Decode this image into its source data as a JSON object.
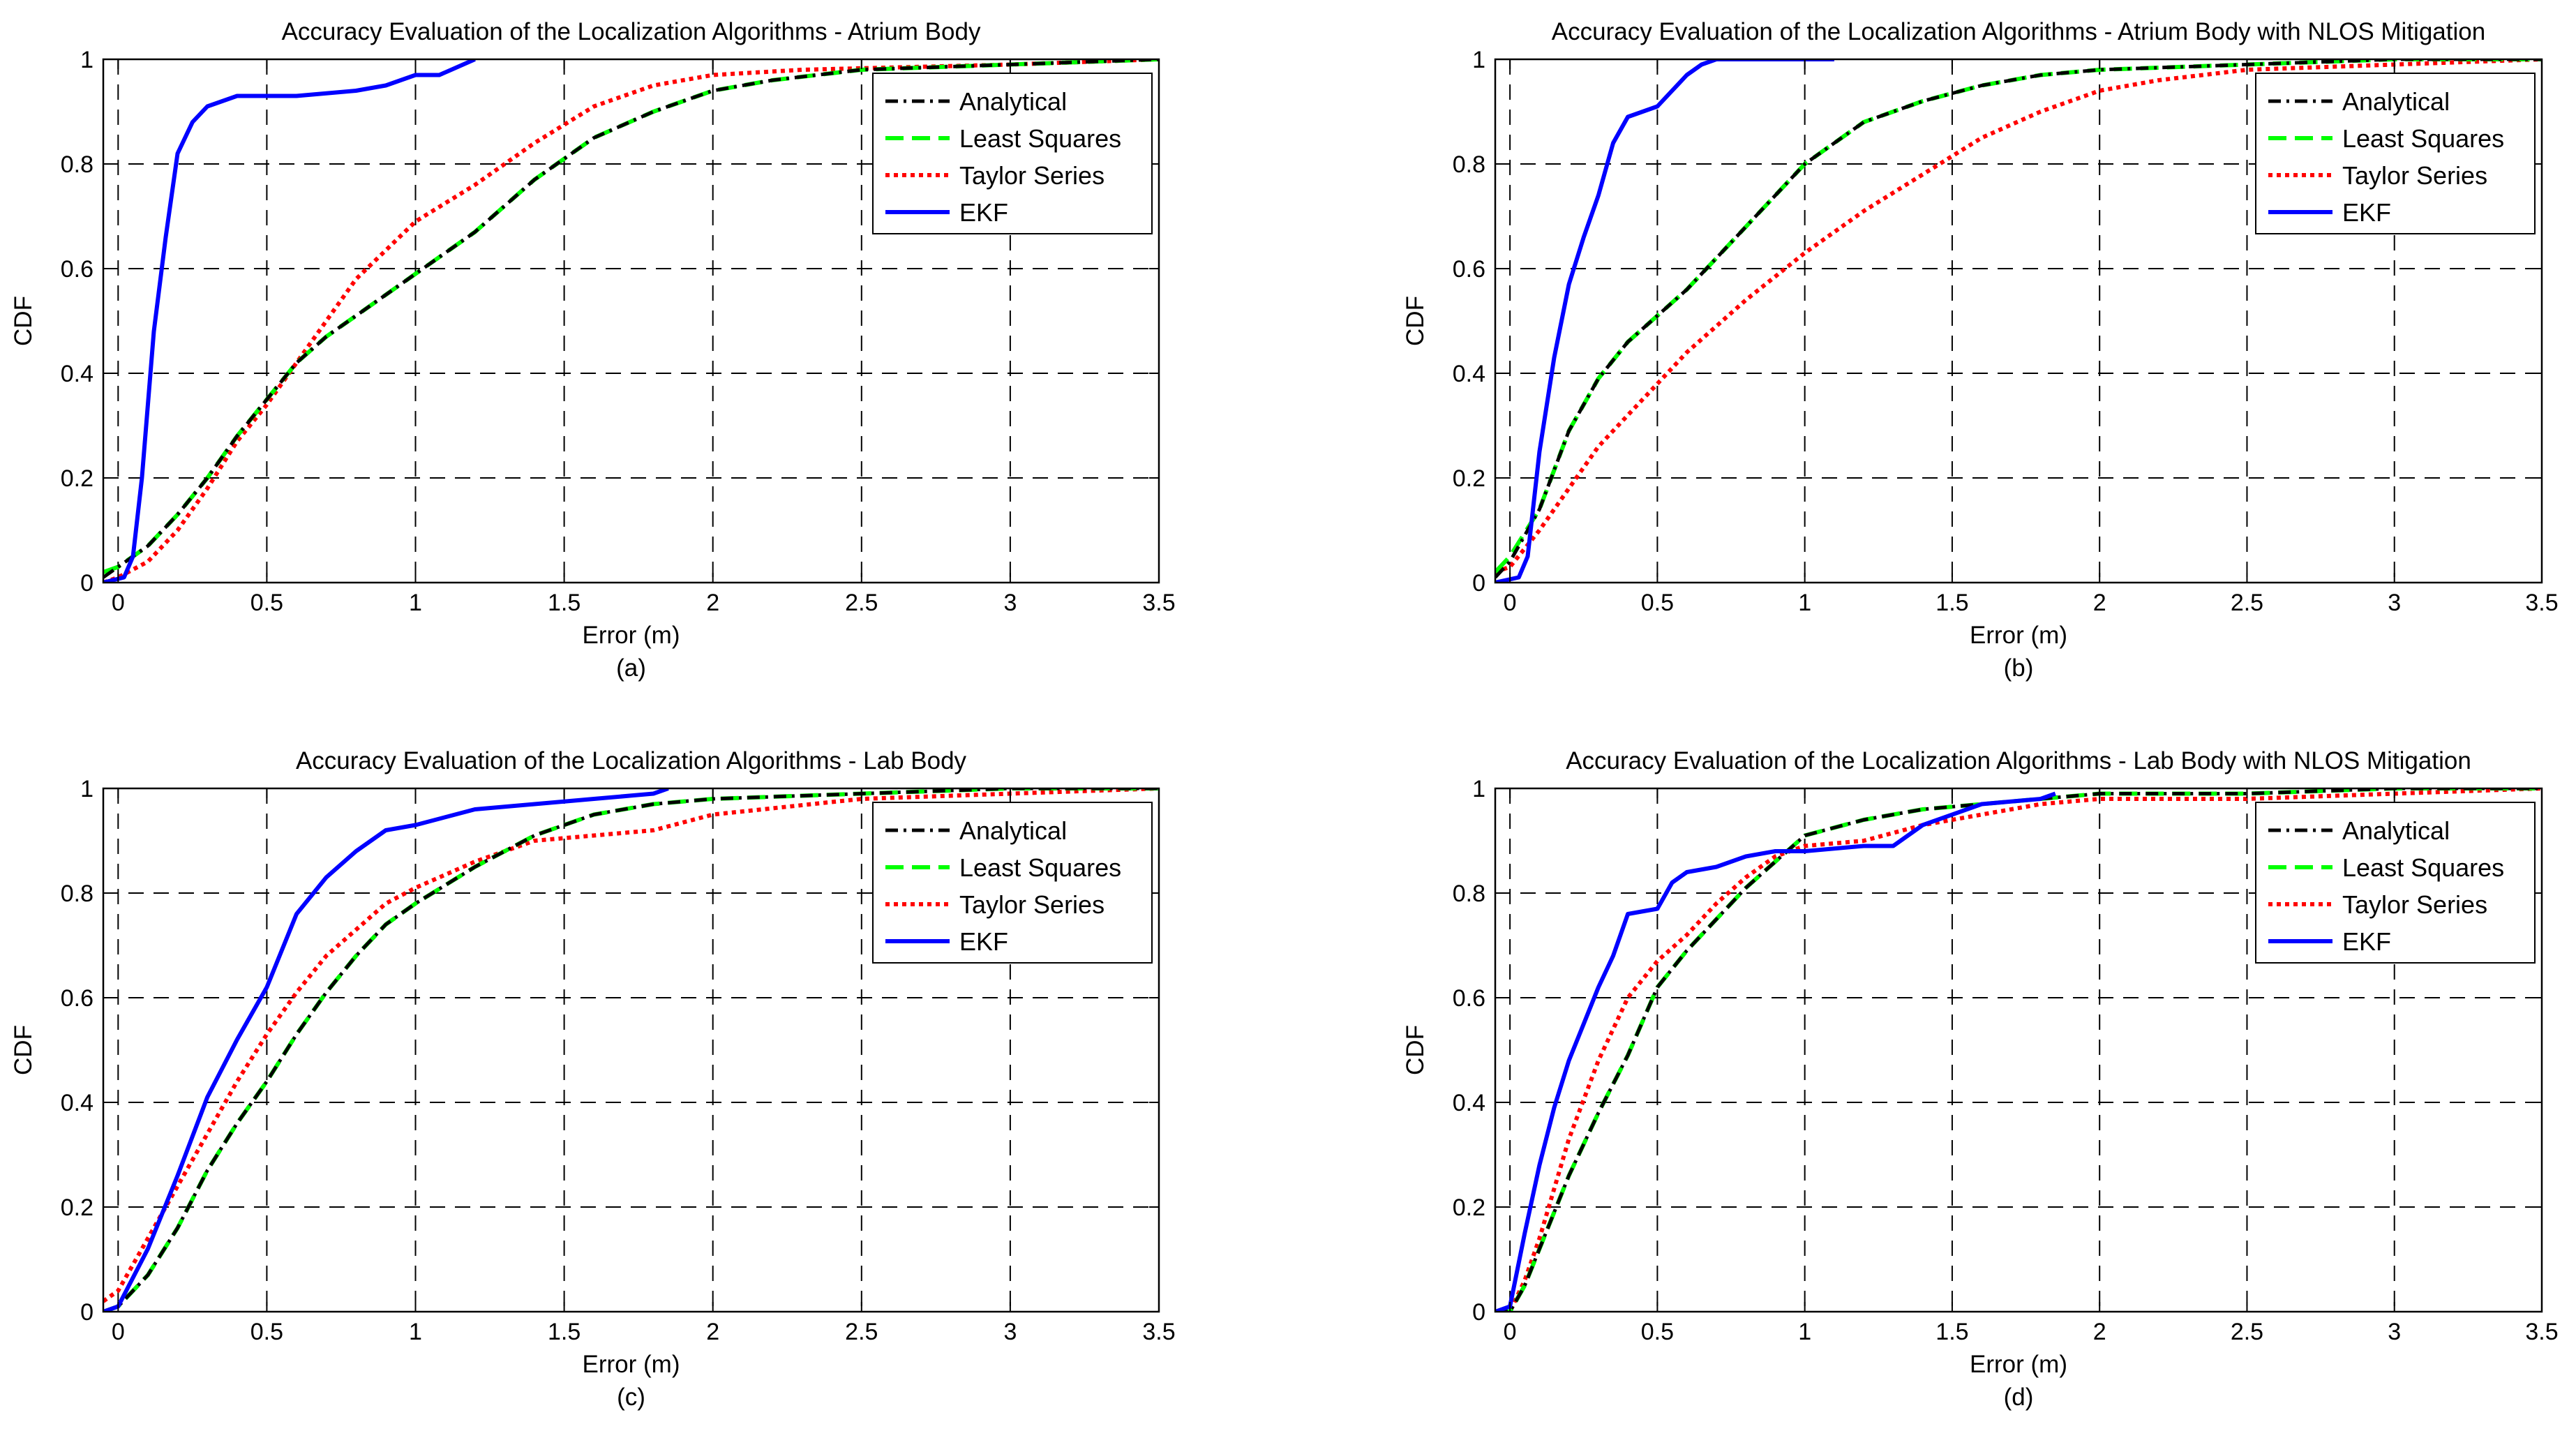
{
  "figure": {
    "legend_labels": [
      "Analytical",
      "Least Squares",
      "Taylor Series",
      "EKF"
    ],
    "series_colors": {
      "Analytical": "#000000",
      "Least Squares": "#00ff00",
      "Taylor Series": "#ff0000",
      "EKF": "#0000ff"
    }
  },
  "chart_data": [
    {
      "type": "line",
      "title": "Accuracy Evaluation of the Localization Algorithms - Atrium Body",
      "xlabel": "Error (m)",
      "ylabel": "CDF",
      "caption": "(a)",
      "xlim": [
        -0.05,
        3.5
      ],
      "ylim": [
        0,
        1
      ],
      "xticks": [
        0,
        0.5,
        1,
        1.5,
        2,
        2.5,
        3,
        3.5
      ],
      "xtick_labels": [
        "0",
        "0.5",
        "1",
        "1.5",
        "2",
        "2.5",
        "3",
        "3.5"
      ],
      "yticks": [
        0,
        0.2,
        0.4,
        0.6,
        0.8,
        1
      ],
      "ytick_labels": [
        "0",
        "0.2",
        "0.4",
        "0.6",
        "0.8",
        "1"
      ],
      "grid": true,
      "legend": "top-right",
      "series": [
        {
          "name": "Analytical",
          "x": [
            -0.05,
            0,
            0.1,
            0.2,
            0.3,
            0.4,
            0.5,
            0.6,
            0.7,
            0.8,
            1.0,
            1.2,
            1.4,
            1.6,
            1.8,
            2.0,
            2.2,
            2.5,
            3.0,
            3.5
          ],
          "y": [
            0.01,
            0.03,
            0.07,
            0.13,
            0.2,
            0.28,
            0.35,
            0.42,
            0.47,
            0.51,
            0.59,
            0.67,
            0.77,
            0.85,
            0.9,
            0.94,
            0.96,
            0.98,
            0.99,
            1.0
          ]
        },
        {
          "name": "Least Squares",
          "x": [
            -0.05,
            0,
            0.1,
            0.2,
            0.3,
            0.4,
            0.5,
            0.6,
            0.7,
            0.8,
            1.0,
            1.2,
            1.4,
            1.6,
            1.8,
            2.0,
            2.2,
            2.5,
            3.0,
            3.5
          ],
          "y": [
            0.02,
            0.03,
            0.07,
            0.13,
            0.2,
            0.28,
            0.35,
            0.42,
            0.47,
            0.51,
            0.59,
            0.67,
            0.77,
            0.85,
            0.9,
            0.94,
            0.96,
            0.98,
            0.99,
            1.0
          ]
        },
        {
          "name": "Taylor Series",
          "x": [
            -0.05,
            0,
            0.1,
            0.2,
            0.3,
            0.4,
            0.5,
            0.6,
            0.8,
            1.0,
            1.2,
            1.4,
            1.6,
            1.8,
            2.0,
            2.3,
            3.0,
            3.5
          ],
          "y": [
            0.0,
            0.01,
            0.04,
            0.1,
            0.18,
            0.27,
            0.34,
            0.42,
            0.58,
            0.69,
            0.76,
            0.84,
            0.91,
            0.95,
            0.97,
            0.98,
            0.99,
            1.0
          ]
        },
        {
          "name": "EKF",
          "x": [
            -0.05,
            0.02,
            0.05,
            0.08,
            0.12,
            0.16,
            0.2,
            0.25,
            0.3,
            0.4,
            0.6,
            0.8,
            0.9,
            1.0,
            1.08,
            1.12,
            1.2
          ],
          "y": [
            0.0,
            0.01,
            0.05,
            0.2,
            0.48,
            0.66,
            0.82,
            0.88,
            0.91,
            0.93,
            0.93,
            0.94,
            0.95,
            0.97,
            0.97,
            0.98,
            1.0
          ]
        }
      ]
    },
    {
      "type": "line",
      "title": "Accuracy Evaluation of the Localization Algorithms - Atrium Body with NLOS Mitigation",
      "xlabel": "Error (m)",
      "ylabel": "CDF",
      "caption": "(b)",
      "xlim": [
        -0.05,
        3.5
      ],
      "ylim": [
        0,
        1
      ],
      "xticks": [
        0,
        0.5,
        1,
        1.5,
        2,
        2.5,
        3,
        3.5
      ],
      "xtick_labels": [
        "0",
        "0.5",
        "1",
        "1.5",
        "2",
        "2.5",
        "3",
        "3.5"
      ],
      "yticks": [
        0,
        0.2,
        0.4,
        0.6,
        0.8,
        1
      ],
      "ytick_labels": [
        "0",
        "0.2",
        "0.4",
        "0.6",
        "0.8",
        "1"
      ],
      "grid": true,
      "legend": "top-right",
      "series": [
        {
          "name": "Analytical",
          "x": [
            -0.05,
            0,
            0.1,
            0.2,
            0.3,
            0.4,
            0.5,
            0.6,
            0.8,
            1.0,
            1.2,
            1.4,
            1.6,
            1.8,
            2.0,
            2.5,
            3.0,
            3.5
          ],
          "y": [
            0.01,
            0.04,
            0.14,
            0.29,
            0.39,
            0.46,
            0.51,
            0.56,
            0.68,
            0.8,
            0.88,
            0.92,
            0.95,
            0.97,
            0.98,
            0.99,
            1.0,
            1.0
          ]
        },
        {
          "name": "Least Squares",
          "x": [
            -0.05,
            0,
            0.1,
            0.2,
            0.3,
            0.4,
            0.5,
            0.6,
            0.8,
            1.0,
            1.2,
            1.4,
            1.6,
            1.8,
            2.0,
            2.5,
            3.0,
            3.5
          ],
          "y": [
            0.02,
            0.05,
            0.14,
            0.29,
            0.39,
            0.46,
            0.51,
            0.56,
            0.68,
            0.8,
            0.88,
            0.92,
            0.95,
            0.97,
            0.98,
            0.99,
            1.0,
            1.0
          ]
        },
        {
          "name": "Taylor Series",
          "x": [
            -0.05,
            0,
            0.1,
            0.2,
            0.3,
            0.4,
            0.5,
            0.6,
            0.8,
            1.0,
            1.2,
            1.4,
            1.6,
            1.8,
            2.0,
            2.2,
            2.5,
            3.0,
            3.5
          ],
          "y": [
            0.02,
            0.03,
            0.1,
            0.18,
            0.26,
            0.32,
            0.38,
            0.44,
            0.54,
            0.63,
            0.71,
            0.78,
            0.85,
            0.9,
            0.94,
            0.96,
            0.98,
            0.99,
            1.0
          ]
        },
        {
          "name": "EKF",
          "x": [
            -0.05,
            0.03,
            0.06,
            0.1,
            0.15,
            0.2,
            0.25,
            0.3,
            0.35,
            0.4,
            0.45,
            0.5,
            0.55,
            0.6,
            0.65,
            0.7,
            0.75,
            1.1
          ],
          "y": [
            0.0,
            0.01,
            0.05,
            0.25,
            0.43,
            0.57,
            0.66,
            0.74,
            0.84,
            0.89,
            0.9,
            0.91,
            0.94,
            0.97,
            0.99,
            1.0,
            1.0,
            1.0
          ]
        }
      ]
    },
    {
      "type": "line",
      "title": "Accuracy Evaluation of the Localization Algorithms - Lab Body",
      "xlabel": "Error (m)",
      "ylabel": "CDF",
      "caption": "(c)",
      "xlim": [
        -0.05,
        3.5
      ],
      "ylim": [
        0,
        1
      ],
      "xticks": [
        0,
        0.5,
        1,
        1.5,
        2,
        2.5,
        3,
        3.5
      ],
      "xtick_labels": [
        "0",
        "0.5",
        "1",
        "1.5",
        "2",
        "2.5",
        "3",
        "3.5"
      ],
      "yticks": [
        0,
        0.2,
        0.4,
        0.6,
        0.8,
        1
      ],
      "ytick_labels": [
        "0",
        "0.2",
        "0.4",
        "0.6",
        "0.8",
        "1"
      ],
      "grid": true,
      "legend": "top-right",
      "series": [
        {
          "name": "Analytical",
          "x": [
            -0.05,
            0,
            0.1,
            0.2,
            0.3,
            0.4,
            0.5,
            0.6,
            0.7,
            0.8,
            0.9,
            1.0,
            1.2,
            1.4,
            1.6,
            1.8,
            2.0,
            2.5,
            3.0,
            3.5
          ],
          "y": [
            0.0,
            0.01,
            0.07,
            0.16,
            0.27,
            0.36,
            0.44,
            0.53,
            0.61,
            0.68,
            0.74,
            0.78,
            0.85,
            0.91,
            0.95,
            0.97,
            0.98,
            0.99,
            1.0,
            1.0
          ]
        },
        {
          "name": "Least Squares",
          "x": [
            -0.05,
            0,
            0.1,
            0.2,
            0.3,
            0.4,
            0.5,
            0.6,
            0.7,
            0.8,
            0.9,
            1.0,
            1.2,
            1.4,
            1.6,
            1.8,
            2.0,
            2.5,
            3.0,
            3.5
          ],
          "y": [
            0.0,
            0.01,
            0.07,
            0.16,
            0.27,
            0.36,
            0.44,
            0.53,
            0.61,
            0.68,
            0.74,
            0.78,
            0.85,
            0.91,
            0.95,
            0.97,
            0.98,
            0.99,
            1.0,
            1.0
          ]
        },
        {
          "name": "Taylor Series",
          "x": [
            -0.05,
            0,
            0.1,
            0.2,
            0.3,
            0.4,
            0.5,
            0.6,
            0.7,
            0.8,
            0.9,
            1.0,
            1.2,
            1.4,
            1.6,
            1.8,
            2.0,
            2.5,
            3.0,
            3.5
          ],
          "y": [
            0.02,
            0.04,
            0.14,
            0.24,
            0.34,
            0.44,
            0.53,
            0.61,
            0.68,
            0.73,
            0.78,
            0.81,
            0.86,
            0.9,
            0.91,
            0.92,
            0.95,
            0.98,
            0.99,
            1.0
          ]
        },
        {
          "name": "EKF",
          "x": [
            -0.05,
            0,
            0.1,
            0.2,
            0.3,
            0.4,
            0.5,
            0.6,
            0.7,
            0.8,
            0.9,
            1.0,
            1.2,
            1.4,
            1.6,
            1.8,
            1.85
          ],
          "y": [
            0.0,
            0.01,
            0.12,
            0.26,
            0.41,
            0.52,
            0.62,
            0.76,
            0.83,
            0.88,
            0.92,
            0.93,
            0.96,
            0.97,
            0.98,
            0.99,
            1.0
          ]
        }
      ]
    },
    {
      "type": "line",
      "title": "Accuracy Evaluation of the Localization Algorithms - Lab Body with NLOS Mitigation",
      "xlabel": "Error (m)",
      "ylabel": "CDF",
      "caption": "(d)",
      "xlim": [
        -0.05,
        3.5
      ],
      "ylim": [
        0,
        1
      ],
      "xticks": [
        0,
        0.5,
        1,
        1.5,
        2,
        2.5,
        3,
        3.5
      ],
      "xtick_labels": [
        "0",
        "0.5",
        "1",
        "1.5",
        "2",
        "2.5",
        "3",
        "3.5"
      ],
      "yticks": [
        0,
        0.2,
        0.4,
        0.6,
        0.8,
        1
      ],
      "ytick_labels": [
        "0",
        "0.2",
        "0.4",
        "0.6",
        "0.8",
        "1"
      ],
      "grid": true,
      "legend": "top-right",
      "series": [
        {
          "name": "Analytical",
          "x": [
            -0.05,
            0,
            0.05,
            0.1,
            0.2,
            0.3,
            0.4,
            0.5,
            0.6,
            0.7,
            0.8,
            0.9,
            1.0,
            1.2,
            1.4,
            1.6,
            1.8,
            2.0,
            2.5,
            3.0,
            3.5
          ],
          "y": [
            0.0,
            0.0,
            0.05,
            0.12,
            0.26,
            0.38,
            0.49,
            0.62,
            0.69,
            0.75,
            0.81,
            0.86,
            0.91,
            0.94,
            0.96,
            0.97,
            0.98,
            0.99,
            0.99,
            1.0,
            1.0
          ]
        },
        {
          "name": "Least Squares",
          "x": [
            -0.05,
            0,
            0.05,
            0.1,
            0.2,
            0.3,
            0.4,
            0.5,
            0.6,
            0.7,
            0.8,
            0.9,
            1.0,
            1.2,
            1.4,
            1.6,
            1.8,
            2.0,
            2.5,
            3.0,
            3.5
          ],
          "y": [
            0.0,
            0.0,
            0.05,
            0.12,
            0.26,
            0.38,
            0.49,
            0.62,
            0.69,
            0.75,
            0.81,
            0.86,
            0.91,
            0.94,
            0.96,
            0.97,
            0.98,
            0.99,
            0.99,
            1.0,
            1.0
          ]
        },
        {
          "name": "Taylor Series",
          "x": [
            -0.05,
            0,
            0.05,
            0.1,
            0.2,
            0.3,
            0.4,
            0.5,
            0.6,
            0.7,
            0.8,
            0.9,
            1.0,
            1.2,
            1.4,
            1.6,
            1.8,
            2.0,
            2.5,
            3.0,
            3.5
          ],
          "y": [
            0.0,
            0.0,
            0.06,
            0.14,
            0.33,
            0.48,
            0.6,
            0.67,
            0.72,
            0.78,
            0.83,
            0.87,
            0.89,
            0.9,
            0.93,
            0.95,
            0.97,
            0.98,
            0.98,
            0.99,
            1.0
          ]
        },
        {
          "name": "EKF",
          "x": [
            -0.05,
            0,
            0.05,
            0.1,
            0.15,
            0.2,
            0.25,
            0.3,
            0.35,
            0.4,
            0.5,
            0.55,
            0.6,
            0.7,
            0.8,
            0.9,
            1.0,
            1.2,
            1.3,
            1.4,
            1.6,
            1.8,
            1.85
          ],
          "y": [
            0.0,
            0.01,
            0.15,
            0.28,
            0.39,
            0.48,
            0.55,
            0.62,
            0.68,
            0.76,
            0.77,
            0.82,
            0.84,
            0.85,
            0.87,
            0.88,
            0.88,
            0.89,
            0.89,
            0.93,
            0.97,
            0.98,
            0.99
          ]
        }
      ]
    }
  ]
}
